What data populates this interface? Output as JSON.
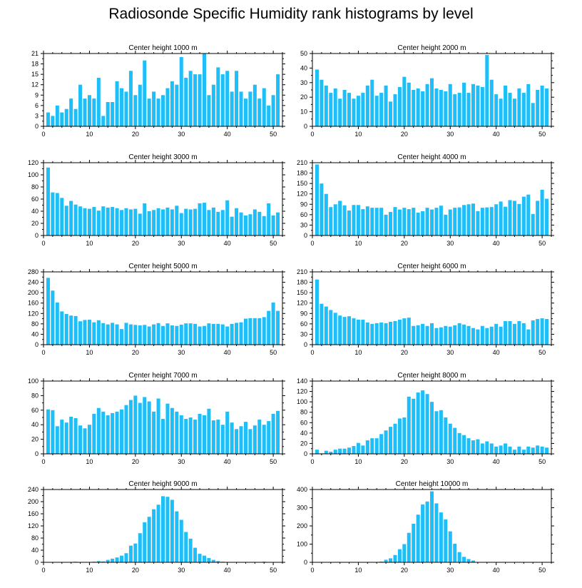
{
  "title": "Radiosonde Specific Humidity rank histograms by level",
  "colors": {
    "bar": "#1EBEF8",
    "axis": "#000000",
    "background": "#ffffff"
  },
  "chart_data": [
    {
      "type": "bar",
      "title": "Center height 1000 m",
      "xlabel": "",
      "ylabel": "",
      "x": [
        1,
        2,
        3,
        4,
        5,
        6,
        7,
        8,
        9,
        10,
        11,
        12,
        13,
        14,
        15,
        16,
        17,
        18,
        19,
        20,
        21,
        22,
        23,
        24,
        25,
        26,
        27,
        28,
        29,
        30,
        31,
        32,
        33,
        34,
        35,
        36,
        37,
        38,
        39,
        40,
        41,
        42,
        43,
        44,
        45,
        46,
        47,
        48,
        49,
        50,
        51
      ],
      "values": [
        4,
        3,
        6,
        4,
        5,
        8,
        5,
        12,
        8,
        9,
        8,
        14,
        3,
        7,
        7,
        13,
        11,
        10,
        16,
        9,
        12,
        19,
        8,
        10,
        8,
        9,
        11,
        13,
        12,
        20,
        14,
        16,
        15,
        15,
        21,
        9,
        12,
        17,
        15,
        16,
        10,
        16,
        10,
        8,
        10,
        12,
        8,
        11,
        6,
        9,
        15
      ],
      "xlim": [
        0,
        52
      ],
      "ylim": [
        0,
        21
      ],
      "xticks": [
        0,
        10,
        20,
        30,
        40,
        50
      ],
      "yticks": [
        0,
        3,
        6,
        9,
        12,
        15,
        18,
        21
      ]
    },
    {
      "type": "bar",
      "title": "Center height 2000 m",
      "xlabel": "",
      "ylabel": "",
      "x": [
        1,
        2,
        3,
        4,
        5,
        6,
        7,
        8,
        9,
        10,
        11,
        12,
        13,
        14,
        15,
        16,
        17,
        18,
        19,
        20,
        21,
        22,
        23,
        24,
        25,
        26,
        27,
        28,
        29,
        30,
        31,
        32,
        33,
        34,
        35,
        36,
        37,
        38,
        39,
        40,
        41,
        42,
        43,
        44,
        45,
        46,
        47,
        48,
        49,
        50,
        51
      ],
      "values": [
        39,
        32,
        28,
        23,
        26,
        19,
        25,
        23,
        19,
        21,
        23,
        28,
        32,
        21,
        23,
        28,
        17,
        22,
        27,
        34,
        30,
        25,
        26,
        24,
        29,
        33,
        26,
        25,
        24,
        29,
        22,
        23,
        30,
        23,
        29,
        28,
        27,
        49,
        32,
        22,
        19,
        28,
        23,
        19,
        26,
        23,
        29,
        16,
        25,
        28,
        26
      ],
      "xlim": [
        0,
        52
      ],
      "ylim": [
        0,
        50
      ],
      "xticks": [
        0,
        10,
        20,
        30,
        40,
        50
      ],
      "yticks": [
        0,
        10,
        20,
        30,
        40,
        50
      ]
    },
    {
      "type": "bar",
      "title": "Center height 3000 m",
      "xlabel": "",
      "ylabel": "",
      "x": [
        1,
        2,
        3,
        4,
        5,
        6,
        7,
        8,
        9,
        10,
        11,
        12,
        13,
        14,
        15,
        16,
        17,
        18,
        19,
        20,
        21,
        22,
        23,
        24,
        25,
        26,
        27,
        28,
        29,
        30,
        31,
        32,
        33,
        34,
        35,
        36,
        37,
        38,
        39,
        40,
        41,
        42,
        43,
        44,
        45,
        46,
        47,
        48,
        49,
        50,
        51
      ],
      "values": [
        112,
        71,
        70,
        62,
        49,
        57,
        51,
        48,
        45,
        44,
        47,
        41,
        48,
        46,
        47,
        45,
        42,
        45,
        43,
        44,
        36,
        53,
        40,
        42,
        45,
        43,
        46,
        43,
        49,
        37,
        44,
        43,
        44,
        53,
        54,
        42,
        46,
        39,
        42,
        58,
        31,
        45,
        38,
        33,
        35,
        43,
        39,
        32,
        53,
        33,
        38
      ],
      "xlim": [
        0,
        52
      ],
      "ylim": [
        0,
        120
      ],
      "xticks": [
        0,
        10,
        20,
        30,
        40,
        50
      ],
      "yticks": [
        0,
        20,
        40,
        60,
        80,
        100,
        120
      ]
    },
    {
      "type": "bar",
      "title": "Center height 4000 m",
      "xlabel": "",
      "ylabel": "",
      "x": [
        1,
        2,
        3,
        4,
        5,
        6,
        7,
        8,
        9,
        10,
        11,
        12,
        13,
        14,
        15,
        16,
        17,
        18,
        19,
        20,
        21,
        22,
        23,
        24,
        25,
        26,
        27,
        28,
        29,
        30,
        31,
        32,
        33,
        34,
        35,
        36,
        37,
        38,
        39,
        40,
        41,
        42,
        43,
        44,
        45,
        46,
        47,
        48,
        49,
        50,
        51
      ],
      "values": [
        205,
        150,
        120,
        82,
        90,
        100,
        87,
        72,
        88,
        88,
        76,
        84,
        80,
        80,
        80,
        60,
        68,
        82,
        75,
        80,
        76,
        80,
        66,
        70,
        80,
        75,
        80,
        86,
        60,
        75,
        80,
        81,
        88,
        90,
        92,
        70,
        80,
        81,
        82,
        90,
        98,
        83,
        102,
        100,
        91,
        112,
        118,
        62,
        100,
        132,
        106
      ],
      "xlim": [
        0,
        52
      ],
      "ylim": [
        0,
        210
      ],
      "xticks": [
        0,
        10,
        20,
        30,
        40,
        50
      ],
      "yticks": [
        0,
        30,
        60,
        90,
        120,
        150,
        180,
        210
      ]
    },
    {
      "type": "bar",
      "title": "Center height 5000 m",
      "xlabel": "",
      "ylabel": "",
      "x": [
        1,
        2,
        3,
        4,
        5,
        6,
        7,
        8,
        9,
        10,
        11,
        12,
        13,
        14,
        15,
        16,
        17,
        18,
        19,
        20,
        21,
        22,
        23,
        24,
        25,
        26,
        27,
        28,
        29,
        30,
        31,
        32,
        33,
        34,
        35,
        36,
        37,
        38,
        39,
        40,
        41,
        42,
        43,
        44,
        45,
        46,
        47,
        48,
        49,
        50,
        51
      ],
      "values": [
        257,
        208,
        162,
        128,
        118,
        112,
        110,
        90,
        95,
        96,
        86,
        94,
        83,
        78,
        84,
        78,
        60,
        84,
        78,
        76,
        74,
        76,
        70,
        78,
        83,
        72,
        82,
        74,
        72,
        77,
        82,
        82,
        80,
        70,
        72,
        82,
        80,
        80,
        78,
        70,
        80,
        84,
        86,
        100,
        102,
        102,
        102,
        106,
        130,
        162,
        130
      ],
      "xlim": [
        0,
        52
      ],
      "ylim": [
        0,
        280
      ],
      "xticks": [
        0,
        10,
        20,
        30,
        40,
        50
      ],
      "yticks": [
        0,
        40,
        80,
        120,
        160,
        200,
        240,
        280
      ]
    },
    {
      "type": "bar",
      "title": "Center height 6000 m",
      "xlabel": "",
      "ylabel": "",
      "x": [
        1,
        2,
        3,
        4,
        5,
        6,
        7,
        8,
        9,
        10,
        11,
        12,
        13,
        14,
        15,
        16,
        17,
        18,
        19,
        20,
        21,
        22,
        23,
        24,
        25,
        26,
        27,
        28,
        29,
        30,
        31,
        32,
        33,
        34,
        35,
        36,
        37,
        38,
        39,
        40,
        41,
        42,
        43,
        44,
        45,
        46,
        47,
        48,
        49,
        50,
        51
      ],
      "values": [
        188,
        118,
        110,
        100,
        92,
        84,
        80,
        82,
        76,
        72,
        72,
        64,
        60,
        62,
        64,
        62,
        66,
        68,
        72,
        76,
        78,
        54,
        56,
        60,
        54,
        62,
        48,
        50,
        54,
        52,
        56,
        62,
        58,
        54,
        48,
        44,
        54,
        48,
        52,
        60,
        52,
        68,
        68,
        60,
        68,
        62,
        44,
        70,
        74,
        76,
        74
      ],
      "xlim": [
        0,
        52
      ],
      "ylim": [
        0,
        210
      ],
      "xticks": [
        0,
        10,
        20,
        30,
        40,
        50
      ],
      "yticks": [
        0,
        30,
        60,
        90,
        120,
        150,
        180,
        210
      ]
    },
    {
      "type": "bar",
      "title": "Center height 7000 m",
      "xlabel": "",
      "ylabel": "",
      "x": [
        1,
        2,
        3,
        4,
        5,
        6,
        7,
        8,
        9,
        10,
        11,
        12,
        13,
        14,
        15,
        16,
        17,
        18,
        19,
        20,
        21,
        22,
        23,
        24,
        25,
        26,
        27,
        28,
        29,
        30,
        31,
        32,
        33,
        34,
        35,
        36,
        37,
        38,
        39,
        40,
        41,
        42,
        43,
        44,
        45,
        46,
        47,
        48,
        49,
        50,
        51
      ],
      "values": [
        61,
        60,
        38,
        47,
        43,
        51,
        49,
        39,
        35,
        40,
        55,
        63,
        58,
        53,
        56,
        58,
        61,
        67,
        74,
        80,
        70,
        78,
        72,
        58,
        76,
        48,
        69,
        63,
        58,
        53,
        48,
        50,
        47,
        55,
        53,
        62,
        46,
        47,
        40,
        58,
        43,
        34,
        38,
        44,
        34,
        39,
        47,
        40,
        45,
        55,
        59
      ],
      "xlim": [
        0,
        52
      ],
      "ylim": [
        0,
        100
      ],
      "xticks": [
        0,
        10,
        20,
        30,
        40,
        50
      ],
      "yticks": [
        0,
        20,
        40,
        60,
        80,
        100
      ]
    },
    {
      "type": "bar",
      "title": "Center height 8000 m",
      "xlabel": "",
      "ylabel": "",
      "x": [
        1,
        2,
        3,
        4,
        5,
        6,
        7,
        8,
        9,
        10,
        11,
        12,
        13,
        14,
        15,
        16,
        17,
        18,
        19,
        20,
        21,
        22,
        23,
        24,
        25,
        26,
        27,
        28,
        29,
        30,
        31,
        32,
        33,
        34,
        35,
        36,
        37,
        38,
        39,
        40,
        41,
        42,
        43,
        44,
        45,
        46,
        47,
        48,
        49,
        50,
        51
      ],
      "values": [
        8,
        1,
        6,
        4,
        8,
        10,
        10,
        12,
        15,
        21,
        16,
        26,
        30,
        30,
        38,
        45,
        52,
        58,
        68,
        70,
        110,
        106,
        118,
        122,
        115,
        100,
        82,
        84,
        70,
        58,
        50,
        40,
        36,
        30,
        26,
        28,
        20,
        24,
        20,
        14,
        16,
        20,
        14,
        8,
        14,
        8,
        14,
        12,
        16,
        14,
        12
      ],
      "xlim": [
        0,
        52
      ],
      "ylim": [
        0,
        140
      ],
      "xticks": [
        0,
        10,
        20,
        30,
        40,
        50
      ],
      "yticks": [
        0,
        20,
        40,
        60,
        80,
        100,
        120,
        140
      ]
    },
    {
      "type": "bar",
      "title": "Center height 9000 m",
      "xlabel": "",
      "ylabel": "",
      "x": [
        1,
        2,
        3,
        4,
        5,
        6,
        7,
        8,
        9,
        10,
        11,
        12,
        13,
        14,
        15,
        16,
        17,
        18,
        19,
        20,
        21,
        22,
        23,
        24,
        25,
        26,
        27,
        28,
        29,
        30,
        31,
        32,
        33,
        34,
        35,
        36,
        37,
        38,
        39,
        40,
        41,
        42,
        43,
        44,
        45,
        46,
        47,
        48,
        49,
        50,
        51
      ],
      "values": [
        0,
        0,
        0,
        0,
        0,
        0,
        2,
        0,
        0,
        1,
        2,
        4,
        3,
        8,
        12,
        16,
        22,
        30,
        55,
        62,
        96,
        132,
        150,
        175,
        190,
        218,
        216,
        206,
        168,
        140,
        100,
        78,
        48,
        28,
        22,
        14,
        8,
        4,
        2,
        1,
        1,
        0,
        0,
        0,
        0,
        0,
        0,
        2,
        0,
        0,
        0
      ],
      "xlim": [
        0,
        52
      ],
      "ylim": [
        0,
        240
      ],
      "xticks": [
        0,
        10,
        20,
        30,
        40,
        50
      ],
      "yticks": [
        0,
        40,
        80,
        120,
        160,
        200,
        240
      ]
    },
    {
      "type": "bar",
      "title": "Center height 10000 m",
      "xlabel": "",
      "ylabel": "",
      "x": [
        1,
        2,
        3,
        4,
        5,
        6,
        7,
        8,
        9,
        10,
        11,
        12,
        13,
        14,
        15,
        16,
        17,
        18,
        19,
        20,
        21,
        22,
        23,
        24,
        25,
        26,
        27,
        28,
        29,
        30,
        31,
        32,
        33,
        34,
        35,
        36,
        37,
        38,
        39,
        40,
        41,
        42,
        43,
        44,
        45,
        46,
        47,
        48,
        49,
        50,
        51
      ],
      "values": [
        0,
        0,
        0,
        0,
        0,
        0,
        0,
        0,
        0,
        0,
        0,
        1,
        1,
        2,
        4,
        14,
        22,
        40,
        72,
        100,
        162,
        212,
        262,
        318,
        334,
        390,
        324,
        274,
        236,
        170,
        102,
        56,
        30,
        18,
        10,
        2,
        0,
        0,
        0,
        0,
        0,
        0,
        0,
        0,
        0,
        0,
        0,
        0,
        0,
        0,
        0
      ],
      "xlim": [
        0,
        52
      ],
      "ylim": [
        0,
        400
      ],
      "xticks": [
        0,
        10,
        20,
        30,
        40,
        50
      ],
      "yticks": [
        0,
        100,
        200,
        300,
        400
      ]
    }
  ]
}
